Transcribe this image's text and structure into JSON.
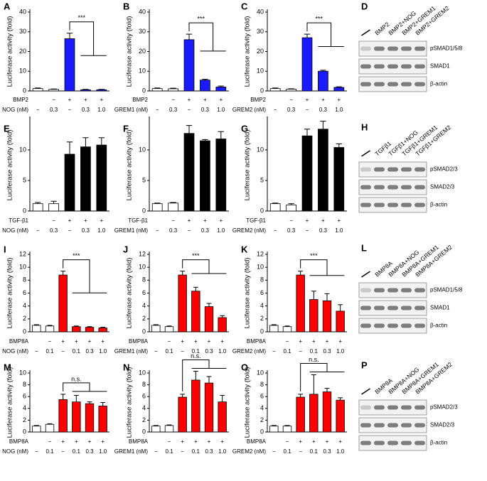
{
  "chart_data": [
    {
      "type": "bar",
      "panel": "A",
      "y_label": "Luciferase activity (fold)",
      "ylim": [
        0,
        40
      ],
      "yticks": [
        0,
        10,
        20,
        30,
        40
      ],
      "values": [
        1.2,
        0.8,
        26.5,
        0.6,
        0.6
      ],
      "errors": [
        0.3,
        0.2,
        2.8,
        0.2,
        0.2
      ],
      "colors": [
        "#ffffff",
        "#ffffff",
        "#1a1aff",
        "#1a1aff",
        "#1a1aff"
      ],
      "treatments": [
        {
          "name": "BMP2",
          "labels": [
            null,
            "−",
            "+",
            "+",
            "+"
          ]
        },
        {
          "name": "NOG (nM)",
          "labels": [
            "−",
            "0.3",
            "−",
            "0.3",
            "1.0"
          ]
        }
      ],
      "significance": "***"
    },
    {
      "type": "bar",
      "panel": "B",
      "y_label": "Luciferase activity (fold)",
      "ylim": [
        0,
        40
      ],
      "yticks": [
        0,
        10,
        20,
        30,
        40
      ],
      "values": [
        1.2,
        1.1,
        26,
        5.5,
        2.0
      ],
      "errors": [
        0.3,
        0.3,
        2.8,
        0.4,
        0.5
      ],
      "colors": [
        "#ffffff",
        "#ffffff",
        "#1a1aff",
        "#1a1aff",
        "#1a1aff"
      ],
      "treatments": [
        {
          "name": "BMP2",
          "labels": [
            null,
            "−",
            "+",
            "+",
            "+"
          ]
        },
        {
          "name": "GREM1 (nM)",
          "labels": [
            "−",
            "0.3",
            "−",
            "0.3",
            "1.0"
          ]
        }
      ],
      "significance": "***"
    },
    {
      "type": "bar",
      "panel": "C",
      "y_label": "Luciferase activity (fold)",
      "ylim": [
        0,
        40
      ],
      "yticks": [
        0,
        10,
        20,
        30,
        40
      ],
      "values": [
        1.2,
        0.9,
        27,
        10,
        1.8
      ],
      "errors": [
        0.3,
        0.2,
        1.8,
        0.5,
        0.3
      ],
      "colors": [
        "#ffffff",
        "#ffffff",
        "#1a1aff",
        "#1a1aff",
        "#1a1aff"
      ],
      "treatments": [
        {
          "name": "BMP2",
          "labels": [
            null,
            "−",
            "+",
            "+",
            "+"
          ]
        },
        {
          "name": "GREM2 (nM)",
          "labels": [
            "−",
            "0.3",
            "−",
            "0.3",
            "1.0"
          ]
        }
      ],
      "significance": "***"
    },
    {
      "type": "bar",
      "panel": "E",
      "y_label": "Luciferase activity (fold)",
      "ylim": [
        0,
        15
      ],
      "yticks": [
        0,
        5,
        10
      ],
      "values": [
        1.2,
        1.2,
        9.3,
        10.5,
        10.8
      ],
      "errors": [
        0.2,
        0.4,
        2.0,
        1.5,
        1.2
      ],
      "colors": [
        "#ffffff",
        "#ffffff",
        "#000000",
        "#000000",
        "#000000"
      ],
      "treatments": [
        {
          "name": "TGF-β1",
          "labels": [
            null,
            "−",
            "+",
            "+",
            "+"
          ]
        },
        {
          "name": "NOG (nM)",
          "labels": [
            "−",
            "0.3",
            "−",
            "0.3",
            "1.0"
          ]
        }
      ]
    },
    {
      "type": "bar",
      "panel": "F",
      "y_label": "Luciferase activity (fold)",
      "ylim": [
        0,
        15
      ],
      "yticks": [
        0,
        5,
        10
      ],
      "values": [
        1.2,
        1.3,
        12.7,
        11.5,
        11.8
      ],
      "errors": [
        0.1,
        0.1,
        1.3,
        0.2,
        1.2
      ],
      "colors": [
        "#ffffff",
        "#ffffff",
        "#000000",
        "#000000",
        "#000000"
      ],
      "treatments": [
        {
          "name": "TGF-β1",
          "labels": [
            null,
            "−",
            "+",
            "+",
            "+"
          ]
        },
        {
          "name": "GREM1 (nM)",
          "labels": [
            "−",
            "0.3",
            "−",
            "0.3",
            "1.0"
          ]
        }
      ]
    },
    {
      "type": "bar",
      "panel": "G",
      "y_label": "Luciferase activity (fold)",
      "ylim": [
        0,
        15
      ],
      "yticks": [
        0,
        5,
        10
      ],
      "values": [
        1.2,
        1.0,
        12.3,
        13.4,
        10.4
      ],
      "errors": [
        0.1,
        0.2,
        1.1,
        1.3,
        0.6
      ],
      "colors": [
        "#ffffff",
        "#ffffff",
        "#000000",
        "#000000",
        "#000000"
      ],
      "treatments": [
        {
          "name": "TGF-β1",
          "labels": [
            null,
            "−",
            "+",
            "+",
            "+"
          ]
        },
        {
          "name": "GREM2 (nM)",
          "labels": [
            "−",
            "0.3",
            "−",
            "0.3",
            "1.0"
          ]
        }
      ]
    },
    {
      "type": "bar",
      "panel": "I",
      "y_label": "Luciferase activity (fold)",
      "ylim": [
        0,
        12
      ],
      "yticks": [
        0,
        2,
        4,
        6,
        8,
        10,
        12
      ],
      "values": [
        1.0,
        0.9,
        8.8,
        0.8,
        0.7,
        0.6
      ],
      "errors": [
        0.1,
        0.1,
        0.6,
        0.1,
        0.1,
        0.1
      ],
      "colors": [
        "#ffffff",
        "#ffffff",
        "#ff0000",
        "#ff0000",
        "#ff0000",
        "#ff0000"
      ],
      "treatments": [
        {
          "name": "BMP8A",
          "labels": [
            null,
            "−",
            "+",
            "+",
            "+",
            "+"
          ]
        },
        {
          "name": "NOG (nM)",
          "labels": [
            "−",
            "0.1",
            "−",
            "0.1",
            "0.3",
            "1.0"
          ]
        }
      ],
      "significance": "***"
    },
    {
      "type": "bar",
      "panel": "J",
      "y_label": "Luciferase activity (fold)",
      "ylim": [
        0,
        12
      ],
      "yticks": [
        0,
        2,
        4,
        6,
        8,
        10,
        12
      ],
      "values": [
        1.0,
        0.8,
        8.8,
        6.3,
        3.9,
        2.2
      ],
      "errors": [
        0.1,
        0.1,
        0.6,
        0.6,
        0.5,
        0.3
      ],
      "colors": [
        "#ffffff",
        "#ffffff",
        "#ff0000",
        "#ff0000",
        "#ff0000",
        "#ff0000"
      ],
      "treatments": [
        {
          "name": "BMP8A",
          "labels": [
            null,
            "−",
            "+",
            "+",
            "+",
            "+"
          ]
        },
        {
          "name": "GREM1 (nM)",
          "labels": [
            "−",
            "0.1",
            "−",
            "0.1",
            "0.3",
            "1.0"
          ]
        }
      ],
      "significance": "***"
    },
    {
      "type": "bar",
      "panel": "K",
      "y_label": "Luciferase activity (fold)",
      "ylim": [
        0,
        12
      ],
      "yticks": [
        0,
        2,
        4,
        6,
        8,
        10,
        12
      ],
      "values": [
        1.0,
        0.8,
        8.8,
        5.0,
        4.8,
        3.2
      ],
      "errors": [
        0.1,
        0.1,
        0.6,
        1.3,
        1.1,
        1.0
      ],
      "colors": [
        "#ffffff",
        "#ffffff",
        "#ff0000",
        "#ff0000",
        "#ff0000",
        "#ff0000"
      ],
      "treatments": [
        {
          "name": "BMP8A",
          "labels": [
            null,
            "−",
            "+",
            "+",
            "+",
            "+"
          ]
        },
        {
          "name": "GREM2 (nM)",
          "labels": [
            "−",
            "0.1",
            "−",
            "0.1",
            "0.3",
            "1.0"
          ]
        }
      ],
      "significance": "***"
    },
    {
      "type": "bar",
      "panel": "M",
      "y_label": "Luciferase activity (fold)",
      "ylim": [
        0,
        10
      ],
      "yticks": [
        0,
        2,
        4,
        6,
        8,
        10
      ],
      "values": [
        1.0,
        1.3,
        5.5,
        5.1,
        4.8,
        4.4
      ],
      "errors": [
        0.1,
        0.1,
        0.9,
        1.1,
        0.3,
        0.6
      ],
      "colors": [
        "#ffffff",
        "#ffffff",
        "#ff0000",
        "#ff0000",
        "#ff0000",
        "#ff0000"
      ],
      "treatments": [
        {
          "name": "BMP8A",
          "labels": [
            null,
            "−",
            "+",
            "+",
            "+",
            "+"
          ]
        },
        {
          "name": "NOG (nM)",
          "labels": [
            "−",
            "0.1",
            "−",
            "0.1",
            "0.3",
            "1.0"
          ]
        }
      ],
      "significance": "n.s."
    },
    {
      "type": "bar",
      "panel": "N",
      "y_label": "Luciferase activity (fold)",
      "ylim": [
        0,
        10
      ],
      "yticks": [
        0,
        2,
        4,
        6,
        8,
        10
      ],
      "values": [
        1.0,
        1.1,
        5.9,
        8.8,
        8.3,
        5.1
      ],
      "errors": [
        0.1,
        0.1,
        0.5,
        1.5,
        1.1,
        1.1
      ],
      "colors": [
        "#ffffff",
        "#ffffff",
        "#ff0000",
        "#ff0000",
        "#ff0000",
        "#ff0000"
      ],
      "treatments": [
        {
          "name": "BMP8A",
          "labels": [
            null,
            "−",
            "+",
            "+",
            "+",
            "+"
          ]
        },
        {
          "name": "GREM1 (nM)",
          "labels": [
            "−",
            "0.1",
            "−",
            "0.1",
            "0.3",
            "1.0"
          ]
        }
      ],
      "significance": "n.s."
    },
    {
      "type": "bar",
      "panel": "O",
      "y_label": "Luciferase activity (fold)",
      "ylim": [
        0,
        10
      ],
      "yticks": [
        0,
        2,
        4,
        6,
        8,
        10
      ],
      "values": [
        1.0,
        1.0,
        5.9,
        6.4,
        6.8,
        5.4
      ],
      "errors": [
        0.1,
        0.1,
        0.5,
        3.3,
        0.6,
        0.4
      ],
      "colors": [
        "#ffffff",
        "#ffffff",
        "#ff0000",
        "#ff0000",
        "#ff0000",
        "#ff0000"
      ],
      "treatments": [
        {
          "name": "BMP8A",
          "labels": [
            null,
            "−",
            "+",
            "+",
            "+",
            "+"
          ]
        },
        {
          "name": "GREM2 (nM)",
          "labels": [
            "−",
            "0.1",
            "−",
            "0.1",
            "0.3",
            "1.0"
          ]
        }
      ],
      "significance": "n.s."
    }
  ],
  "blots": [
    {
      "panel": "D",
      "lanes": [
        null,
        "BMP2",
        "BMP2+NOG",
        "BMP2+GREM1",
        "BMP2+GREM2"
      ],
      "rows": [
        "pSMAD1/5/8",
        "SMAD1",
        "β-actin"
      ]
    },
    {
      "panel": "H",
      "lanes": [
        null,
        "TGFβ1",
        "TGFβ1+NOG",
        "TGFβ1+GREM1",
        "TGFβ1+GREM2"
      ],
      "rows": [
        "pSMAD2/3",
        "SMAD2/3",
        "β-actin"
      ]
    },
    {
      "panel": "L",
      "lanes": [
        null,
        "BMP8A",
        "BMP8A+NOG",
        "BMP8A+GREM1",
        "BMP8A+GREM2"
      ],
      "rows": [
        "pSMAD1/5/8",
        "SMAD1",
        "β-actin"
      ]
    },
    {
      "panel": "P",
      "lanes": [
        null,
        "BMP8A",
        "BMP8A+NOG",
        "BMP8A+GREM1",
        "BMP8A+GREM2"
      ],
      "rows": [
        "pSMAD2/3",
        "SMAD2/3",
        "β-actin"
      ]
    }
  ]
}
